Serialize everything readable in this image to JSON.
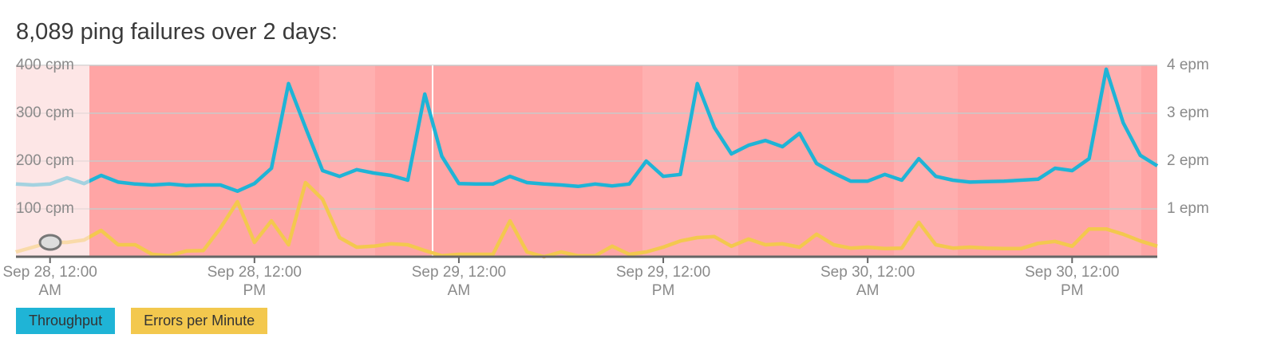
{
  "chart_data": {
    "type": "line",
    "title": "8,089 ping failures over 2 days:",
    "categories": [
      null,
      null,
      "Sep 28, 12:00 AM",
      null,
      null,
      null,
      null,
      null,
      null,
      null,
      null,
      null,
      null,
      null,
      "Sep 28, 12:00 PM",
      null,
      null,
      null,
      null,
      null,
      null,
      null,
      null,
      null,
      null,
      null,
      "Sep 29, 12:00 AM",
      null,
      null,
      null,
      null,
      null,
      null,
      null,
      null,
      null,
      null,
      null,
      "Sep 29, 12:00 PM",
      null,
      null,
      null,
      null,
      null,
      null,
      null,
      null,
      null,
      null,
      null,
      "Sep 30, 12:00 AM",
      null,
      null,
      null,
      null,
      null,
      null,
      null,
      null,
      null,
      null,
      null,
      "Sep 30, 12:00 PM",
      null,
      null,
      null,
      null,
      null
    ],
    "series": [
      {
        "name": "Throughput",
        "color": "#1fb4d6",
        "values": [
          152,
          150,
          152,
          165,
          153,
          170,
          156,
          152,
          150,
          152,
          149,
          150,
          150,
          137,
          153,
          185,
          362,
          270,
          180,
          168,
          182,
          175,
          170,
          160,
          340,
          210,
          153,
          152,
          152,
          168,
          155,
          152,
          150,
          147,
          152,
          148,
          152,
          200,
          168,
          172,
          362,
          270,
          215,
          233,
          243,
          230,
          258,
          195,
          175,
          158,
          158,
          172,
          160,
          205,
          168,
          160,
          156,
          157,
          158,
          160,
          162,
          185,
          180,
          205,
          392,
          280,
          212,
          190
        ]
      },
      {
        "name": "Errors per Minute",
        "color": "#f3c84e",
        "axis": "y2",
        "values": [
          0.1,
          0.2,
          0.3,
          0.3,
          0.35,
          0.55,
          0.25,
          0.25,
          0.05,
          0.02,
          0.12,
          0.13,
          0.6,
          1.15,
          0.3,
          0.75,
          0.25,
          1.55,
          1.2,
          0.4,
          0.2,
          0.22,
          0.27,
          0.25,
          0.13,
          0.02,
          0.05,
          0.05,
          0.05,
          0.75,
          0.1,
          0.0,
          0.1,
          0.02,
          0.02,
          0.22,
          0.05,
          0.1,
          0.2,
          0.33,
          0.4,
          0.42,
          0.22,
          0.37,
          0.25,
          0.27,
          0.2,
          0.47,
          0.25,
          0.18,
          0.2,
          0.17,
          0.18,
          0.72,
          0.25,
          0.18,
          0.2,
          0.18,
          0.17,
          0.17,
          0.28,
          0.32,
          0.22,
          0.58,
          0.58,
          0.47,
          0.33,
          0.22
        ]
      }
    ],
    "ylim": [
      0,
      400
    ],
    "yticks": [
      {
        "value": 100,
        "label": "100 cpm"
      },
      {
        "value": 200,
        "label": "200 cpm"
      },
      {
        "value": 300,
        "label": "300 cpm"
      },
      {
        "value": 400,
        "label": "400 cpm"
      }
    ],
    "y2lim": [
      0,
      4
    ],
    "y2ticks": [
      {
        "value": 1,
        "label": "1 epm"
      },
      {
        "value": 2,
        "label": "2 epm"
      },
      {
        "value": 3,
        "label": "3 epm"
      },
      {
        "value": 4,
        "label": "4 epm"
      }
    ],
    "grid": true
  }
}
